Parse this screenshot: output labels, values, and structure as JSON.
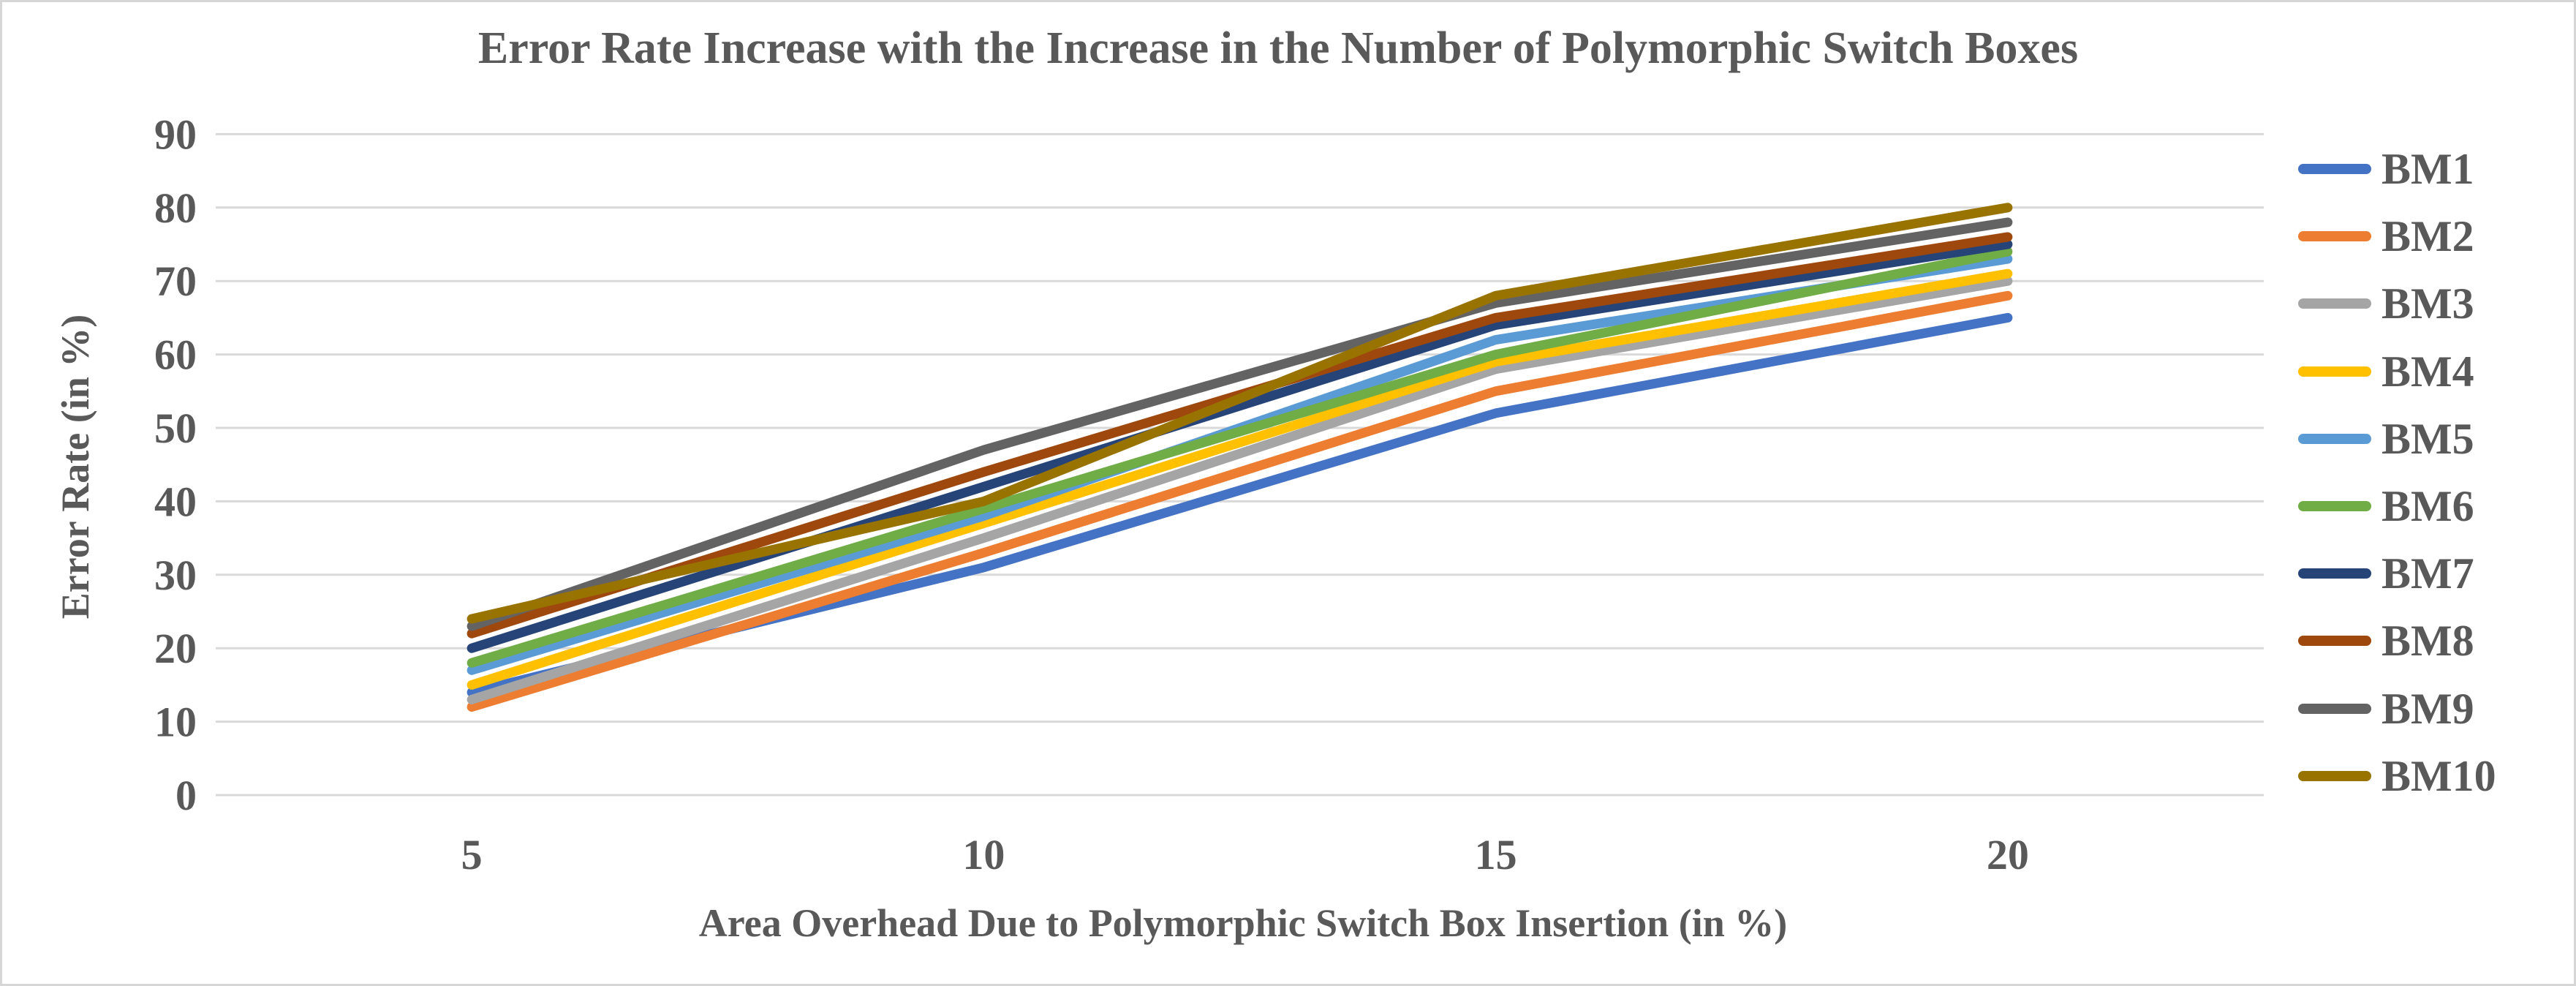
{
  "chart_data": {
    "type": "line",
    "title": "Error Rate Increase with the Increase in the Number of Polymorphic Switch Boxes",
    "xlabel": "Area Overhead Due to Polymorphic Switch Box Insertion (in %)",
    "ylabel": "Error Rate (in %)",
    "categories": [
      "5",
      "10",
      "15",
      "20"
    ],
    "ylim": [
      0,
      90
    ],
    "ytick_step": 10,
    "grid": "horizontal",
    "legend_position": "right",
    "colors": {
      "gridline": "#D9D9D9",
      "text": "#595959",
      "background": "#FFFFFF",
      "border": "#D6D6D6"
    },
    "series": [
      {
        "name": "BM1",
        "color": "#4472C4",
        "values": [
          14,
          31,
          52,
          65
        ]
      },
      {
        "name": "BM2",
        "color": "#ED7D31",
        "values": [
          12,
          33,
          55,
          68
        ]
      },
      {
        "name": "BM3",
        "color": "#A5A5A5",
        "values": [
          13,
          35,
          58,
          70
        ]
      },
      {
        "name": "BM4",
        "color": "#FFC000",
        "values": [
          15,
          37,
          59,
          71
        ]
      },
      {
        "name": "BM5",
        "color": "#5B9BD5",
        "values": [
          17,
          38,
          62,
          73
        ]
      },
      {
        "name": "BM6",
        "color": "#70AD47",
        "values": [
          18,
          39,
          60,
          74
        ]
      },
      {
        "name": "BM7",
        "color": "#264478",
        "values": [
          20,
          42,
          64,
          75
        ]
      },
      {
        "name": "BM8",
        "color": "#9E480E",
        "values": [
          22,
          44,
          65,
          76
        ]
      },
      {
        "name": "BM9",
        "color": "#636363",
        "values": [
          23,
          47,
          67,
          78
        ]
      },
      {
        "name": "BM10",
        "color": "#997300",
        "values": [
          24,
          40,
          68,
          80
        ]
      }
    ]
  }
}
